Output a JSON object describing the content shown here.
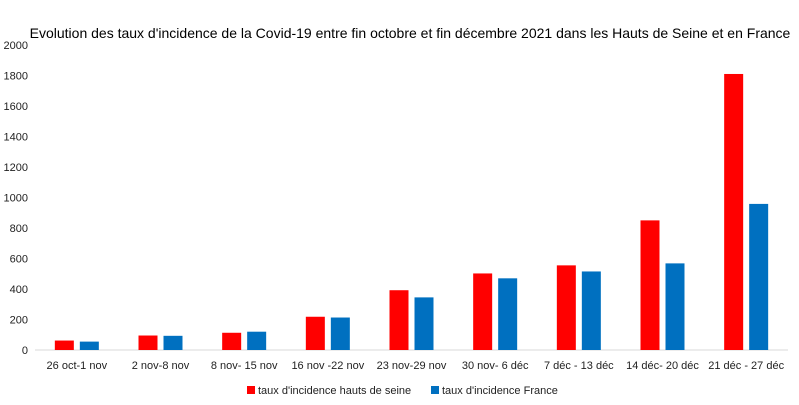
{
  "chart_data": {
    "type": "bar",
    "title": "Evolution des taux d'incidence de la Covid-19 entre fin octobre et fin décembre 2021 dans les Hauts de Seine et en France",
    "categories": [
      "26 oct-1 nov",
      "2 nov-8 nov",
      "8 nov- 15 nov",
      "16 nov -22 nov",
      "23 nov-29 nov",
      "30 nov- 6 déc",
      "7 déc - 13 déc",
      "14 déc- 20 déc",
      "21 déc - 27 déc"
    ],
    "series": [
      {
        "name": "taux d'incidence hauts de seine",
        "color": "#ff0000",
        "values": [
          62,
          95,
          113,
          218,
          392,
          502,
          555,
          850,
          1810
        ]
      },
      {
        "name": "taux d'incidence France",
        "color": "#0070c0",
        "values": [
          55,
          93,
          120,
          213,
          345,
          470,
          515,
          568,
          958
        ]
      }
    ],
    "yticks": [
      "0",
      "200",
      "400",
      "600",
      "800",
      "1000",
      "1200",
      "1400",
      "1600",
      "1800",
      "2000"
    ],
    "ylim": [
      0,
      2000
    ],
    "grid": false,
    "legend_position": "bottom"
  }
}
